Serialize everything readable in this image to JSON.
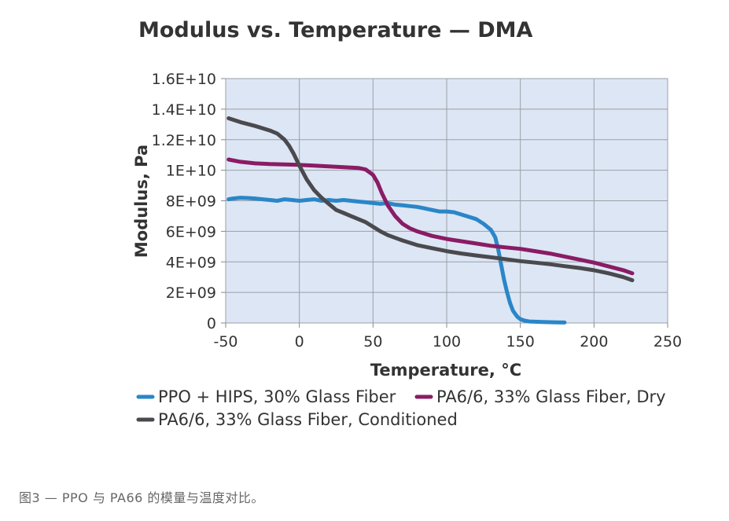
{
  "chart_data": {
    "type": "line",
    "title": "Modulus vs. Temperature — DMA",
    "xlabel": "Temperature, °C",
    "ylabel": "Modulus, Pa",
    "xlim": [
      -50,
      250
    ],
    "ylim": [
      0,
      16000000000
    ],
    "xticks": [
      -50,
      0,
      50,
      100,
      150,
      200,
      250
    ],
    "xtick_labels": [
      "-50",
      "0",
      "50",
      "100",
      "150",
      "200",
      "250"
    ],
    "yticks": [
      0,
      2000000000,
      4000000000,
      6000000000,
      8000000000,
      10000000000,
      12000000000,
      14000000000,
      16000000000
    ],
    "ytick_labels": [
      "0",
      "2E+09",
      "4E+09",
      "6E+09",
      "8E+09",
      "1E+10",
      "1.2E+10",
      "1.4E+10",
      "1.6E+10"
    ],
    "grid": true,
    "legend_position": "bottom",
    "series": [
      {
        "name": "PPO + HIPS, 30% Glass Fiber",
        "color": "#2a86c8",
        "x": [
          -48,
          -45,
          -40,
          -35,
          -30,
          -25,
          -20,
          -15,
          -10,
          -5,
          0,
          5,
          10,
          15,
          20,
          25,
          30,
          35,
          40,
          45,
          50,
          55,
          60,
          65,
          70,
          75,
          80,
          85,
          90,
          95,
          100,
          105,
          110,
          115,
          120,
          125,
          130,
          133,
          135,
          137,
          139,
          141,
          143,
          145,
          148,
          150,
          153,
          156,
          160,
          165,
          170,
          175,
          180
        ],
        "y": [
          8100000000,
          8150000000,
          8200000000,
          8180000000,
          8150000000,
          8100000000,
          8050000000,
          8000000000,
          8100000000,
          8050000000,
          8000000000,
          8050000000,
          8100000000,
          8000000000,
          8050000000,
          8000000000,
          8050000000,
          8000000000,
          7950000000,
          7900000000,
          7850000000,
          7800000000,
          7850000000,
          7750000000,
          7700000000,
          7650000000,
          7600000000,
          7500000000,
          7400000000,
          7300000000,
          7300000000,
          7250000000,
          7100000000,
          6950000000,
          6800000000,
          6500000000,
          6100000000,
          5600000000,
          4800000000,
          3800000000,
          2800000000,
          2000000000,
          1300000000,
          800000000,
          400000000,
          250000000,
          150000000,
          100000000,
          80000000,
          60000000,
          50000000,
          40000000,
          30000000
        ]
      },
      {
        "name": "PA6/6, 33% Glass Fiber, Dry",
        "color": "#8a1c64",
        "x": [
          -48,
          -40,
          -30,
          -20,
          -10,
          0,
          10,
          20,
          30,
          40,
          45,
          50,
          53,
          56,
          60,
          65,
          70,
          75,
          80,
          90,
          100,
          110,
          120,
          130,
          140,
          150,
          160,
          170,
          180,
          190,
          200,
          210,
          220,
          226
        ],
        "y": [
          10700000000,
          10550000000,
          10450000000,
          10400000000,
          10380000000,
          10350000000,
          10300000000,
          10250000000,
          10200000000,
          10150000000,
          10050000000,
          9700000000,
          9200000000,
          8500000000,
          7700000000,
          7000000000,
          6500000000,
          6200000000,
          6000000000,
          5700000000,
          5500000000,
          5350000000,
          5200000000,
          5050000000,
          4950000000,
          4850000000,
          4700000000,
          4550000000,
          4350000000,
          4150000000,
          3950000000,
          3700000000,
          3450000000,
          3250000000
        ]
      },
      {
        "name": "PA6/6, 33% Glass Fiber, Conditioned",
        "color": "#4a4a4e",
        "x": [
          -48,
          -40,
          -30,
          -20,
          -15,
          -10,
          -7,
          -4,
          0,
          5,
          10,
          15,
          20,
          25,
          30,
          35,
          40,
          45,
          50,
          55,
          60,
          70,
          80,
          90,
          100,
          110,
          120,
          130,
          140,
          150,
          160,
          170,
          180,
          190,
          200,
          210,
          220,
          226
        ],
        "y": [
          13400000000,
          13150000000,
          12900000000,
          12600000000,
          12400000000,
          12000000000,
          11600000000,
          11100000000,
          10300000000,
          9400000000,
          8700000000,
          8200000000,
          7800000000,
          7400000000,
          7200000000,
          7000000000,
          6800000000,
          6600000000,
          6300000000,
          6000000000,
          5750000000,
          5400000000,
          5100000000,
          4900000000,
          4700000000,
          4550000000,
          4420000000,
          4300000000,
          4180000000,
          4050000000,
          3950000000,
          3850000000,
          3720000000,
          3600000000,
          3450000000,
          3250000000,
          3000000000,
          2800000000
        ]
      }
    ]
  },
  "caption": "图3 — PPO 与 PA66 的模量与温度对比。"
}
